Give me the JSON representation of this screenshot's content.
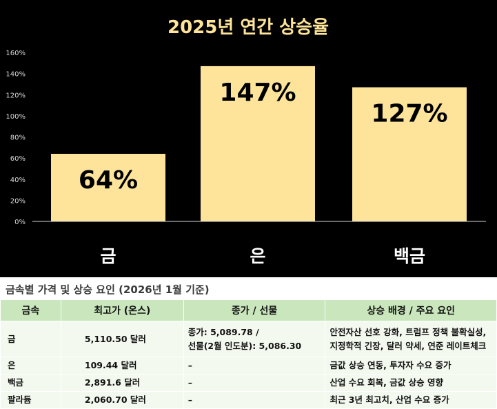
{
  "chart_data": {
    "type": "bar",
    "title": "2025년 연간 상승율",
    "categories": [
      "금",
      "은",
      "백금"
    ],
    "values": [
      64,
      147,
      127
    ],
    "value_labels": [
      "64%",
      "147%",
      "127%"
    ],
    "ylim": [
      0,
      160
    ],
    "yticks": [
      "0%",
      "20%",
      "40%",
      "60%",
      "80%",
      "100%",
      "120%",
      "140%",
      "160%"
    ],
    "grid": false,
    "colors": {
      "background": "#000000",
      "bar": "#fde49a",
      "text": "#ffffff",
      "title": "#fde49a",
      "label": "#000000"
    }
  },
  "table": {
    "title": "금속별 가격 및 상승 요인 (2026년 1월 기준)",
    "headers": [
      "금속",
      "최고가 (온스)",
      "종가 / 선물",
      "상승 배경 / 주요 요인"
    ],
    "rows": [
      {
        "metal": "금",
        "price": "5,110.50 달러",
        "close_1": "종가: 5,089.78 /",
        "close_2": "선물(2월 인도분): 5,086.30",
        "factor_1": "안전자산 선호 강화, 트럼프 정책 불확실성,",
        "factor_2": "지정학적 긴장, 달러 약세, 연준 레이트체크"
      },
      {
        "metal": "은",
        "price": "109.44 달러",
        "close": "–",
        "factor": "금값 상승 연동, 투자자 수요 증가"
      },
      {
        "metal": "백금",
        "price": "2,891.6 달러",
        "close": "–",
        "factor": "산업 수요 회복, 금값 상승 영향"
      },
      {
        "metal": "팔라듐",
        "price": "2,060.70 달러",
        "close": "–",
        "factor": "최근 3년 최고치, 산업 수요 증가"
      }
    ],
    "colors": {
      "header": "#c9e6bd",
      "cell": "#f3f9ef"
    }
  }
}
